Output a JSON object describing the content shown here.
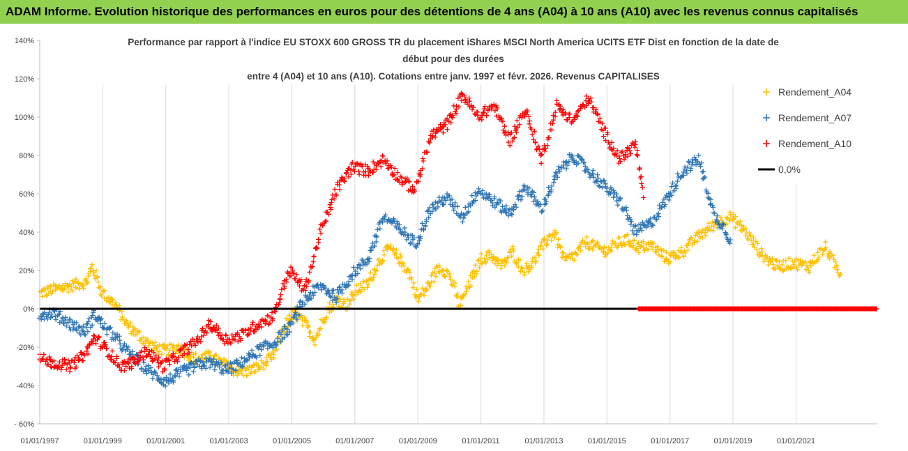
{
  "banner": {
    "title": "ADAM Informe. Evolution historique des performances en euros pour des détentions de 4 ans (A04) à 10 ans (A10) avec les revenus connus capitalisés"
  },
  "chart_data": {
    "type": "scatter",
    "title_lines": [
      "Performance par rapport à l'indice EU STOXX 600 GROSS TR  du placement iShares MSCI North America UCITS ETF Dist en fonction de la date de",
      "début pour des durées",
      "entre 4 (A04) et 10 ans (A10). Cotations entre janv. 1997 et févr. 2026. Revenus CAPITALISES"
    ],
    "xlabel": "",
    "ylabel": "",
    "x_range": [
      "1997-01-01",
      "2023-08-01"
    ],
    "x_tick_labels": [
      "01/01/1997",
      "01/01/1999",
      "01/01/2001",
      "01/01/2003",
      "01/01/2005",
      "01/01/2007",
      "01/01/2009",
      "01/01/2011",
      "01/01/2013",
      "01/01/2015",
      "01/01/2017",
      "01/01/2019",
      "01/01/2021"
    ],
    "x_ticks": [
      "1997-01-01",
      "1999-01-01",
      "2001-01-01",
      "2003-01-01",
      "2005-01-01",
      "2007-01-01",
      "2009-01-01",
      "2011-01-01",
      "2013-01-01",
      "2015-01-01",
      "2017-01-01",
      "2019-01-01",
      "2021-01-01"
    ],
    "y_range": [
      -60,
      140
    ],
    "y_ticks": [
      -60,
      -40,
      -20,
      0,
      20,
      40,
      60,
      80,
      100,
      120,
      140
    ],
    "y_tick_labels": [
      "- 60%",
      "-40%",
      "-20%",
      "0%",
      "20%",
      "40%",
      "60%",
      "80%",
      "100%",
      "120%",
      "140%"
    ],
    "grid": "vertical",
    "legend_position": "right",
    "marker": "+",
    "series": [
      {
        "name": "Rendement_A04",
        "color": "#ffc000",
        "x": [
          "1997-01-01",
          "1997-06-01",
          "1998-01-01",
          "1998-07-01",
          "1998-09-01",
          "1999-01-01",
          "1999-06-01",
          "1999-10-01",
          "2000-03-01",
          "2000-08-01",
          "2001-01-01",
          "2001-06-01",
          "2001-12-01",
          "2002-06-01",
          "2002-10-01",
          "2003-03-01",
          "2003-07-01",
          "2004-01-01",
          "2004-06-01",
          "2004-10-01",
          "2005-02-01",
          "2005-06-01",
          "2005-10-01",
          "2006-02-01",
          "2006-06-01",
          "2006-10-01",
          "2007-02-01",
          "2007-06-01",
          "2007-10-01",
          "2008-02-01",
          "2008-06-01",
          "2008-10-01",
          "2009-01-01",
          "2009-05-01",
          "2009-09-01",
          "2010-01-01",
          "2010-05-01",
          "2010-09-01",
          "2011-01-01",
          "2011-05-01",
          "2011-09-01",
          "2012-01-01",
          "2012-05-01",
          "2012-09-01",
          "2013-01-01",
          "2013-05-01",
          "2013-09-01",
          "2014-01-01",
          "2014-05-01",
          "2014-09-01",
          "2015-01-01",
          "2015-05-01",
          "2015-09-01",
          "2016-01-01",
          "2016-06-01",
          "2016-12-01",
          "2017-06-01",
          "2017-12-01",
          "2018-06-01",
          "2018-12-01",
          "2019-06-01",
          "2019-12-01",
          "2020-06-01",
          "2020-12-01",
          "2021-06-01",
          "2021-12-01",
          "2022-06-01"
        ],
        "values": [
          8,
          10,
          12,
          14,
          22,
          8,
          2,
          -8,
          -14,
          -20,
          -22,
          -20,
          -26,
          -25,
          -28,
          -32,
          -33,
          -30,
          -25,
          -10,
          -2,
          -8,
          -16,
          -2,
          5,
          2,
          10,
          13,
          24,
          32,
          26,
          18,
          5,
          12,
          22,
          18,
          2,
          14,
          26,
          28,
          22,
          30,
          20,
          24,
          34,
          40,
          25,
          28,
          35,
          32,
          30,
          34,
          36,
          32,
          33,
          26,
          30,
          38,
          44,
          48,
          40,
          28,
          22,
          24,
          22,
          32,
          18
        ]
      },
      {
        "name": "Rendement_A07",
        "color": "#2e75b6",
        "x": [
          "1997-01-01",
          "1997-06-01",
          "1998-01-01",
          "1998-06-01",
          "1998-10-01",
          "1999-02-01",
          "1999-06-01",
          "1999-10-01",
          "2000-03-01",
          "2000-08-01",
          "2001-01-01",
          "2001-06-01",
          "2001-12-01",
          "2002-06-01",
          "2002-12-01",
          "2003-06-01",
          "2003-12-01",
          "2004-06-01",
          "2004-12-01",
          "2005-06-01",
          "2005-12-01",
          "2006-06-01",
          "2006-12-01",
          "2007-06-01",
          "2007-12-01",
          "2008-06-01",
          "2008-12-01",
          "2009-06-01",
          "2009-12-01",
          "2010-06-01",
          "2010-12-01",
          "2011-06-01",
          "2011-12-01",
          "2012-06-01",
          "2012-12-01",
          "2013-06-01",
          "2013-12-01",
          "2014-06-01",
          "2014-12-01",
          "2015-06-01",
          "2015-12-01",
          "2016-06-01",
          "2016-12-01",
          "2017-06-01",
          "2017-12-01",
          "2018-06-01",
          "2018-09-01",
          "2018-12-01"
        ],
        "values": [
          -3,
          -2,
          -8,
          -12,
          -3,
          -10,
          -15,
          -22,
          -28,
          -34,
          -38,
          -34,
          -30,
          -28,
          -32,
          -28,
          -22,
          -18,
          -10,
          5,
          12,
          6,
          18,
          26,
          48,
          42,
          34,
          52,
          58,
          48,
          62,
          56,
          50,
          64,
          52,
          70,
          80,
          72,
          64,
          56,
          40,
          45,
          58,
          72,
          78,
          48,
          44,
          36
        ]
      },
      {
        "name": "Rendement_A10",
        "color": "#ff0000",
        "x": [
          "1997-01-01",
          "1997-06-01",
          "1998-01-01",
          "1998-06-01",
          "1998-10-01",
          "1999-03-01",
          "1999-08-01",
          "2000-01-01",
          "2000-06-01",
          "2000-12-01",
          "2001-06-01",
          "2001-12-01",
          "2002-06-01",
          "2002-12-01",
          "2003-06-01",
          "2003-12-01",
          "2004-06-01",
          "2004-12-01",
          "2005-06-01",
          "2005-12-01",
          "2006-06-01",
          "2006-12-01",
          "2007-06-01",
          "2007-12-01",
          "2008-06-01",
          "2008-12-01",
          "2009-06-01",
          "2009-12-01",
          "2010-06-01",
          "2010-12-01",
          "2011-06-01",
          "2011-12-01",
          "2012-06-01",
          "2012-12-01",
          "2013-06-01",
          "2013-12-01",
          "2014-06-01",
          "2014-12-01",
          "2015-06-01",
          "2015-12-01",
          "2016-03-01"
        ],
        "values": [
          -26,
          -28,
          -30,
          -24,
          -15,
          -22,
          -30,
          -28,
          -22,
          -30,
          -24,
          -18,
          -8,
          -16,
          -14,
          -8,
          -4,
          20,
          10,
          40,
          62,
          74,
          72,
          78,
          68,
          62,
          90,
          96,
          112,
          100,
          106,
          88,
          104,
          78,
          106,
          98,
          110,
          92,
          78,
          86,
          58
        ]
      },
      {
        "name": "0,0%",
        "color": "#000000",
        "x": [
          "1997-01-01",
          "2016-01-01"
        ],
        "values": [
          0,
          0
        ]
      },
      {
        "name": "",
        "color": "#ff0000",
        "x": [
          "2016-01-01",
          "2023-08-01"
        ],
        "values": [
          0,
          0
        ]
      }
    ]
  }
}
